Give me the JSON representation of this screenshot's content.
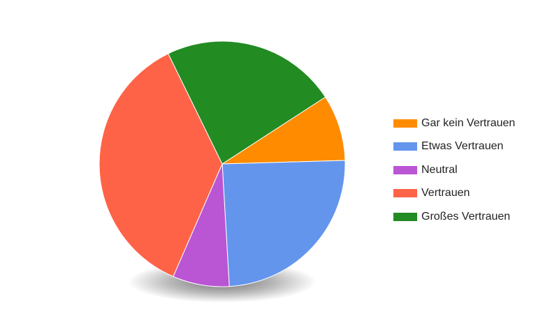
{
  "chart_data": {
    "type": "pie",
    "title": "",
    "legend_position": "right",
    "slices": [
      {
        "label": "Gar kein Vertrauen",
        "value": 9.6,
        "color": "#ff8c00"
      },
      {
        "label": "Etwas Vertrauen",
        "value": 27.0,
        "color": "#6495ed"
      },
      {
        "label": "Neutral",
        "value": 8.2,
        "color": "#ba55d3"
      },
      {
        "label": "Vertrauen",
        "value": 39.9,
        "color": "#ff6347"
      },
      {
        "label": "Großes Vertrauen",
        "value": 25.4,
        "color": "#228b22"
      }
    ]
  }
}
